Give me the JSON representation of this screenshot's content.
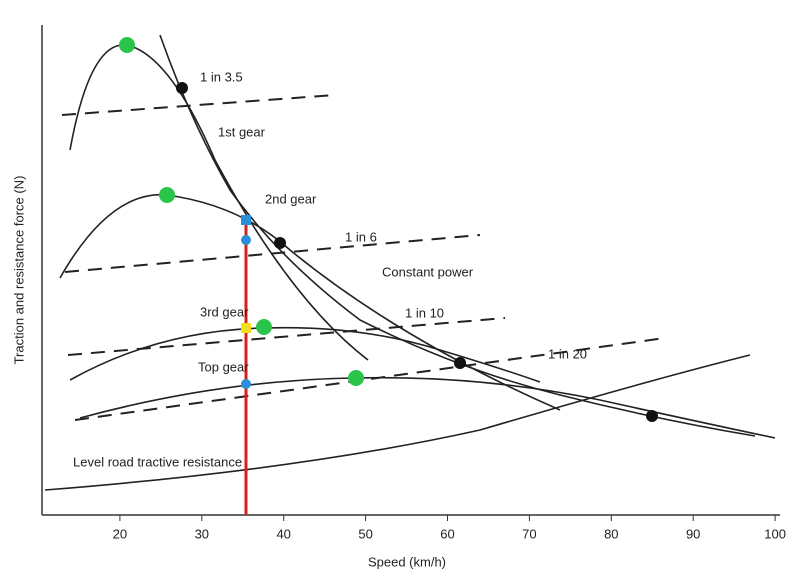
{
  "axes": {
    "x_label": "Speed (km/h)",
    "y_label": "Traction and resistance force (N)",
    "x_ticks": [
      20,
      30,
      40,
      50,
      60,
      70,
      80,
      90,
      100
    ]
  },
  "labels": {
    "gradient_3_5": "1 in 3.5",
    "first_gear": "1st gear",
    "second_gear": "2nd gear",
    "gradient_6": "1 in 6",
    "constant_power": "Constant power",
    "third_gear": "3rd gear",
    "gradient_10": "1 in 10",
    "top_gear": "Top gear",
    "gradient_20": "1 in 20",
    "level_road": "Level road tractive resistance"
  }
}
